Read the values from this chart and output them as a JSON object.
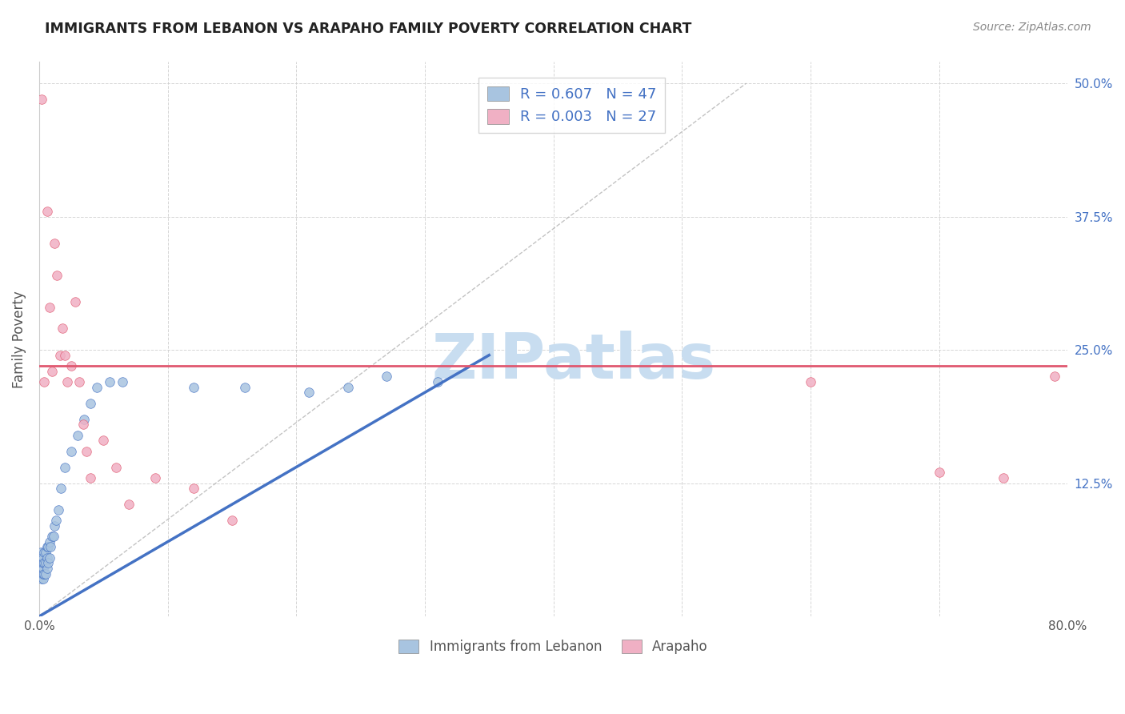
{
  "title": "IMMIGRANTS FROM LEBANON VS ARAPAHO FAMILY POVERTY CORRELATION CHART",
  "source": "Source: ZipAtlas.com",
  "ylabel": "Family Poverty",
  "legend_label1": "Immigrants from Lebanon",
  "legend_label2": "Arapaho",
  "R1": 0.607,
  "N1": 47,
  "R2": 0.003,
  "N2": 27,
  "color_blue": "#a8c4e0",
  "color_pink": "#f0b0c4",
  "trend_blue": "#4472c4",
  "trend_pink": "#e05870",
  "xlim": [
    0.0,
    0.8
  ],
  "ylim": [
    0.0,
    0.52
  ],
  "watermark": "ZIPatlas",
  "watermark_color": "#c8ddf0",
  "blue_x": [
    0.001,
    0.001,
    0.001,
    0.002,
    0.002,
    0.002,
    0.002,
    0.002,
    0.003,
    0.003,
    0.003,
    0.003,
    0.003,
    0.004,
    0.004,
    0.004,
    0.005,
    0.005,
    0.005,
    0.006,
    0.006,
    0.006,
    0.007,
    0.007,
    0.008,
    0.008,
    0.009,
    0.01,
    0.011,
    0.012,
    0.013,
    0.015,
    0.017,
    0.02,
    0.025,
    0.03,
    0.035,
    0.04,
    0.045,
    0.055,
    0.065,
    0.12,
    0.16,
    0.21,
    0.24,
    0.27,
    0.31
  ],
  "blue_y": [
    0.04,
    0.05,
    0.06,
    0.035,
    0.04,
    0.045,
    0.05,
    0.055,
    0.035,
    0.04,
    0.045,
    0.05,
    0.055,
    0.04,
    0.05,
    0.06,
    0.04,
    0.05,
    0.06,
    0.045,
    0.055,
    0.065,
    0.05,
    0.065,
    0.055,
    0.07,
    0.065,
    0.075,
    0.075,
    0.085,
    0.09,
    0.1,
    0.12,
    0.14,
    0.155,
    0.17,
    0.185,
    0.2,
    0.215,
    0.22,
    0.22,
    0.215,
    0.215,
    0.21,
    0.215,
    0.225,
    0.22
  ],
  "pink_x": [
    0.002,
    0.004,
    0.006,
    0.008,
    0.01,
    0.012,
    0.014,
    0.016,
    0.018,
    0.02,
    0.022,
    0.025,
    0.028,
    0.031,
    0.034,
    0.037,
    0.04,
    0.05,
    0.06,
    0.07,
    0.09,
    0.12,
    0.15,
    0.6,
    0.7,
    0.75,
    0.79
  ],
  "pink_y": [
    0.485,
    0.22,
    0.38,
    0.29,
    0.23,
    0.35,
    0.32,
    0.245,
    0.27,
    0.245,
    0.22,
    0.235,
    0.295,
    0.22,
    0.18,
    0.155,
    0.13,
    0.165,
    0.14,
    0.105,
    0.13,
    0.12,
    0.09,
    0.22,
    0.135,
    0.13,
    0.225
  ],
  "blue_trend_x": [
    0.0,
    0.35
  ],
  "blue_trend_y": [
    0.0,
    0.245
  ],
  "pink_trend_y": 0.235
}
